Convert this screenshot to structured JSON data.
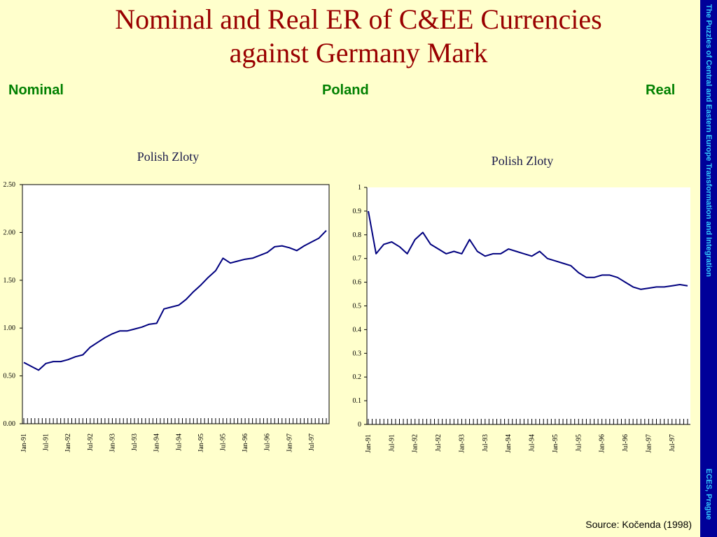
{
  "slide": {
    "title_line1": "Nominal and Real ER of C&EE Currencies",
    "title_line2": "against Germany Mark",
    "label_left": "Nominal",
    "label_center": "Poland",
    "label_right": "Real",
    "sidebar_text": "The Puzzles of Central and Eastern Europe Transformation and Integration",
    "sidebar_footer": "ECES, Prague",
    "source": "Source: Kočenda (1998)"
  },
  "colors": {
    "title": "#990000",
    "labels": "#008000",
    "sidebar": "#000099",
    "sidebar_text": "#33CCFF",
    "background": "#FFFFCC",
    "line": "#00007F"
  },
  "chart_data": [
    {
      "type": "line",
      "title": "Polish Zloty",
      "ylim": [
        0,
        2.5
      ],
      "yticks": [
        "0.00",
        "0.50",
        "1.00",
        "1.50",
        "2.00",
        "2.50"
      ],
      "xticks": [
        "Jan-91",
        "Jul-91",
        "Jan-92",
        "Jul-92",
        "Jan-93",
        "Jul-93",
        "Jan-94",
        "Jul-94",
        "Jan-95",
        "Jul-95",
        "Jan-96",
        "Jul-96",
        "Jan-97",
        "Jul-97"
      ],
      "grid": false,
      "x": [
        "Jan-91",
        "Mar-91",
        "May-91",
        "Jul-91",
        "Sep-91",
        "Nov-91",
        "Jan-92",
        "Mar-92",
        "May-92",
        "Jul-92",
        "Sep-92",
        "Nov-92",
        "Jan-93",
        "Mar-93",
        "May-93",
        "Jul-93",
        "Sep-93",
        "Nov-93",
        "Jan-94",
        "Mar-94",
        "May-94",
        "Jul-94",
        "Sep-94",
        "Nov-94",
        "Jan-95",
        "Mar-95",
        "May-95",
        "Jul-95",
        "Sep-95",
        "Nov-95",
        "Jan-96",
        "Mar-96",
        "May-96",
        "Jul-96",
        "Sep-96",
        "Nov-96",
        "Jan-97",
        "Mar-97",
        "May-97",
        "Jul-97",
        "Sep-97",
        "Nov-97"
      ],
      "values": [
        0.64,
        0.6,
        0.56,
        0.63,
        0.65,
        0.65,
        0.67,
        0.7,
        0.72,
        0.8,
        0.85,
        0.9,
        0.94,
        0.97,
        0.97,
        0.99,
        1.01,
        1.04,
        1.05,
        1.2,
        1.22,
        1.24,
        1.3,
        1.38,
        1.45,
        1.53,
        1.6,
        1.73,
        1.68,
        1.7,
        1.72,
        1.73,
        1.76,
        1.79,
        1.85,
        1.86,
        1.84,
        1.81,
        1.86,
        1.9,
        1.94,
        2.02
      ]
    },
    {
      "type": "line",
      "title": "Polish Zloty",
      "ylim": [
        0,
        1
      ],
      "yticks": [
        "0",
        "0.1",
        "0.2",
        "0.3",
        "0.4",
        "0.5",
        "0.6",
        "0.7",
        "0.8",
        "0.9",
        "1"
      ],
      "xticks": [
        "Jan-91",
        "Jul-91",
        "Jan-92",
        "Jul-92",
        "Jan-93",
        "Jul-93",
        "Jan-94",
        "Jul-94",
        "Jan-95",
        "Jul-95",
        "Jan-96",
        "Jul-96",
        "Jan-97",
        "Jul-97"
      ],
      "grid": false,
      "x": [
        "Jan-91",
        "Mar-91",
        "May-91",
        "Jul-91",
        "Sep-91",
        "Nov-91",
        "Jan-92",
        "Mar-92",
        "May-92",
        "Jul-92",
        "Sep-92",
        "Nov-92",
        "Jan-93",
        "Mar-93",
        "May-93",
        "Jul-93",
        "Sep-93",
        "Nov-93",
        "Jan-94",
        "Mar-94",
        "May-94",
        "Jul-94",
        "Sep-94",
        "Nov-94",
        "Jan-95",
        "Mar-95",
        "May-95",
        "Jul-95",
        "Sep-95",
        "Nov-95",
        "Jan-96",
        "Mar-96",
        "May-96",
        "Jul-96",
        "Sep-96",
        "Nov-96",
        "Jan-97",
        "Mar-97",
        "May-97",
        "Jul-97",
        "Sep-97",
        "Nov-97"
      ],
      "values": [
        0.9,
        0.72,
        0.76,
        0.77,
        0.75,
        0.72,
        0.78,
        0.81,
        0.76,
        0.74,
        0.72,
        0.73,
        0.72,
        0.78,
        0.73,
        0.71,
        0.72,
        0.72,
        0.74,
        0.73,
        0.72,
        0.71,
        0.73,
        0.7,
        0.69,
        0.68,
        0.67,
        0.64,
        0.62,
        0.62,
        0.63,
        0.63,
        0.62,
        0.6,
        0.58,
        0.57,
        0.575,
        0.58,
        0.58,
        0.585,
        0.59,
        0.585
      ]
    }
  ]
}
